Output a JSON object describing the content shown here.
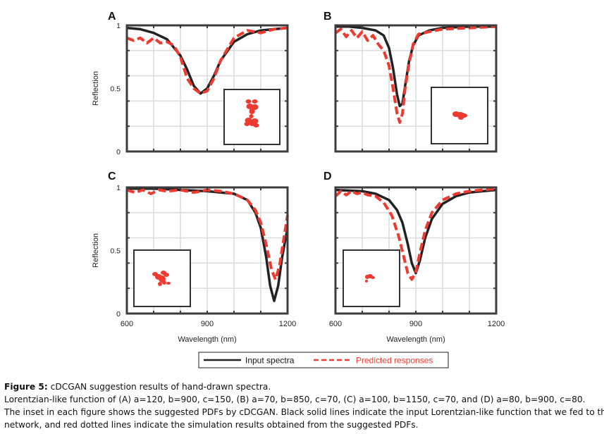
{
  "figure": {
    "caption": {
      "label": "Figure 5:",
      "title": "cDCGAN suggestion results of hand-drawn spectra.",
      "line2": "Lorentzian-like function of (A) a=120, b=900, c=150, (B) a=70, b=850, c=70, (C) a=100, b=1150, c=70, and (D) a=80, b=900, c=80.",
      "line3": "The inset in each figure shows the suggested PDFs by cDCGAN. Black solid lines indicate the input Lorentzian-like function that we fed to the",
      "line4": "network, and red dotted lines indicate the simulation results obtained from the suggested PDFs."
    },
    "legend": {
      "input": "Input spectra",
      "predicted": "Predicted responses"
    }
  },
  "chart_data": [
    {
      "type": "line",
      "panel": "A",
      "xlabel": "",
      "ylabel": "Reflection",
      "xlim": [
        600,
        1200
      ],
      "ylim": [
        0,
        1
      ],
      "xticks": [],
      "yticks": [
        0,
        0.5,
        1
      ],
      "grid": true,
      "series": [
        {
          "name": "Input spectra",
          "color": "#222222",
          "style": "solid",
          "x": [
            600,
            650,
            700,
            750,
            800,
            825,
            850,
            875,
            900,
            925,
            950,
            1000,
            1050,
            1100,
            1150,
            1200
          ],
          "y": [
            0.98,
            0.97,
            0.94,
            0.89,
            0.76,
            0.65,
            0.52,
            0.46,
            0.5,
            0.6,
            0.72,
            0.87,
            0.93,
            0.96,
            0.97,
            0.98
          ]
        },
        {
          "name": "Predicted responses",
          "color": "#ee3a30",
          "style": "dashed",
          "x": [
            600,
            625,
            650,
            675,
            700,
            725,
            750,
            775,
            800,
            825,
            850,
            875,
            900,
            925,
            950,
            1000,
            1050,
            1100,
            1150,
            1200
          ],
          "y": [
            0.9,
            0.88,
            0.9,
            0.86,
            0.9,
            0.86,
            0.87,
            0.84,
            0.75,
            0.58,
            0.5,
            0.46,
            0.48,
            0.58,
            0.72,
            0.9,
            0.96,
            0.94,
            0.97,
            0.98
          ]
        }
      ],
      "inset": "suggested PDF"
    },
    {
      "type": "line",
      "panel": "B",
      "xlabel": "",
      "ylabel": "",
      "xlim": [
        600,
        1200
      ],
      "ylim": [
        0,
        1
      ],
      "xticks": [],
      "yticks": [],
      "grid": true,
      "series": [
        {
          "name": "Input spectra",
          "color": "#222222",
          "style": "solid",
          "x": [
            600,
            650,
            700,
            750,
            780,
            800,
            815,
            830,
            840,
            850,
            860,
            875,
            890,
            910,
            950,
            1000,
            1100,
            1200
          ],
          "y": [
            0.99,
            0.99,
            0.98,
            0.96,
            0.92,
            0.82,
            0.66,
            0.45,
            0.36,
            0.38,
            0.52,
            0.72,
            0.84,
            0.92,
            0.96,
            0.98,
            0.99,
            0.99
          ]
        },
        {
          "name": "Predicted responses",
          "color": "#ee3a30",
          "style": "dashed",
          "x": [
            600,
            620,
            640,
            660,
            680,
            700,
            720,
            740,
            760,
            780,
            800,
            815,
            830,
            840,
            850,
            860,
            875,
            890,
            910,
            950,
            1000,
            1100,
            1200
          ],
          "y": [
            0.94,
            0.97,
            0.91,
            0.96,
            0.9,
            0.95,
            0.88,
            0.92,
            0.85,
            0.8,
            0.68,
            0.5,
            0.3,
            0.23,
            0.3,
            0.5,
            0.7,
            0.85,
            0.93,
            0.95,
            0.97,
            0.98,
            0.99
          ]
        }
      ],
      "inset": "suggested PDF"
    },
    {
      "type": "line",
      "panel": "C",
      "xlabel": "",
      "ylabel": "Reflection",
      "xlim": [
        600,
        1200
      ],
      "ylim": [
        0,
        1
      ],
      "xticks": [
        600,
        900,
        1200
      ],
      "yticks": [
        0,
        0.5,
        1
      ],
      "grid": true,
      "series": [
        {
          "name": "Input spectra",
          "color": "#222222",
          "style": "solid",
          "x": [
            600,
            700,
            800,
            900,
            1000,
            1050,
            1080,
            1100,
            1120,
            1135,
            1150,
            1165,
            1180,
            1200
          ],
          "y": [
            0.99,
            0.99,
            0.98,
            0.97,
            0.95,
            0.9,
            0.8,
            0.68,
            0.45,
            0.22,
            0.1,
            0.22,
            0.45,
            0.68
          ]
        },
        {
          "name": "Predicted responses",
          "color": "#ee3a30",
          "style": "dashed",
          "x": [
            600,
            630,
            660,
            690,
            720,
            750,
            800,
            850,
            900,
            950,
            1000,
            1050,
            1080,
            1100,
            1120,
            1140,
            1155,
            1170,
            1185,
            1200
          ],
          "y": [
            0.98,
            0.96,
            0.98,
            0.95,
            0.98,
            0.97,
            0.98,
            0.96,
            0.98,
            0.97,
            0.95,
            0.9,
            0.82,
            0.72,
            0.55,
            0.35,
            0.27,
            0.38,
            0.58,
            0.78
          ]
        }
      ],
      "inset": "suggested PDF"
    },
    {
      "type": "line",
      "panel": "D",
      "xlabel": "Wavelength (nm)",
      "ylabel": "",
      "xlim": [
        600,
        1200
      ],
      "ylim": [
        0,
        1
      ],
      "xticks": [
        600,
        900,
        1200
      ],
      "yticks": [],
      "grid": true,
      "series": [
        {
          "name": "Input spectra",
          "color": "#222222",
          "style": "solid",
          "x": [
            600,
            700,
            750,
            800,
            830,
            850,
            870,
            885,
            900,
            915,
            935,
            960,
            1000,
            1050,
            1100,
            1150,
            1200
          ],
          "y": [
            0.98,
            0.97,
            0.95,
            0.9,
            0.82,
            0.72,
            0.55,
            0.4,
            0.32,
            0.42,
            0.6,
            0.75,
            0.87,
            0.93,
            0.96,
            0.97,
            0.98
          ]
        },
        {
          "name": "Predicted responses",
          "color": "#ee3a30",
          "style": "dashed",
          "x": [
            600,
            620,
            640,
            660,
            680,
            700,
            720,
            750,
            780,
            810,
            835,
            855,
            870,
            885,
            900,
            915,
            935,
            960,
            1000,
            1050,
            1100,
            1150,
            1200
          ],
          "y": [
            0.93,
            0.97,
            0.94,
            0.97,
            0.95,
            0.96,
            0.94,
            0.93,
            0.88,
            0.78,
            0.62,
            0.45,
            0.32,
            0.27,
            0.33,
            0.48,
            0.66,
            0.8,
            0.9,
            0.95,
            0.97,
            0.98,
            0.99
          ]
        }
      ],
      "inset": "suggested PDF"
    }
  ]
}
